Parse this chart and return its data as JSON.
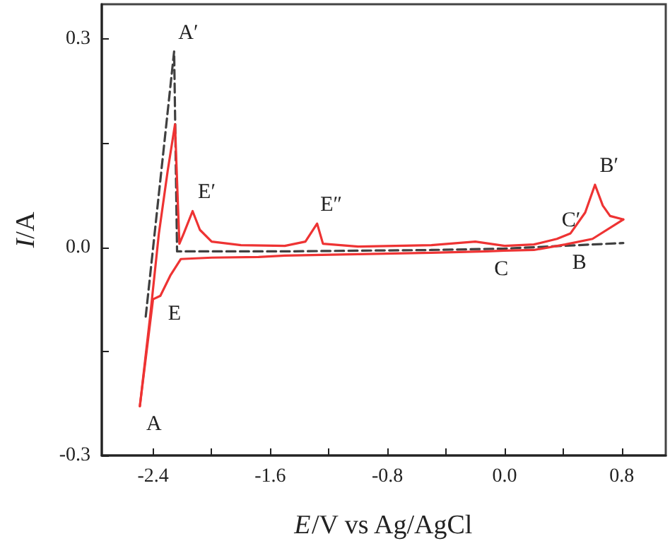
{
  "chart_data": {
    "type": "line",
    "xlabel": "E/V vs Ag/AgCl",
    "ylabel": "I/A",
    "xlim": [
      -2.75,
      1.1
    ],
    "ylim": [
      -0.3,
      0.35
    ],
    "xticks": [
      {
        "value": -2.4,
        "label": "-2.4"
      },
      {
        "value": -2.0,
        "label": null
      },
      {
        "value": -1.6,
        "label": "-1.6"
      },
      {
        "value": -1.2,
        "label": null
      },
      {
        "value": -0.8,
        "label": "-0.8"
      },
      {
        "value": -0.4,
        "label": null
      },
      {
        "value": 0,
        "label": "0.0"
      },
      {
        "value": 0.4,
        "label": null
      },
      {
        "value": 0.8,
        "label": "0.8"
      }
    ],
    "yticks": [
      {
        "value": -0.3,
        "label": "-0.3"
      },
      {
        "value": -0.15,
        "label": null
      },
      {
        "value": 0,
        "label": "0.0"
      },
      {
        "value": 0.15,
        "label": null
      },
      {
        "value": 0.3,
        "label": "0.3"
      }
    ],
    "grid": false,
    "marker": "none",
    "series": [
      {
        "color": "#404040",
        "line_style": "dashed",
        "x": [
          -2.45,
          -2.256,
          -2.236,
          -1.5,
          -0.5,
          0.0,
          0.4,
          0.81
        ],
        "values": [
          -0.1,
          0.282,
          -0.006,
          -0.006,
          -0.004,
          -0.002,
          0.002,
          0.006
        ]
      },
      {
        "color": "#ee3333",
        "line_style": "solid",
        "x": [
          -2.49,
          -2.42,
          -2.36,
          -2.3,
          -2.25,
          -2.23,
          -2.22,
          -2.19,
          -2.13,
          -2.08,
          -2.0,
          -1.8,
          -1.5,
          -1.36,
          -1.28,
          -1.24,
          -1.0,
          -0.5,
          -0.2,
          0.0,
          0.2,
          0.357,
          0.45,
          0.55,
          0.617,
          0.67,
          0.72,
          0.81
        ],
        "values": [
          -0.229,
          -0.1,
          0.02,
          0.11,
          0.177,
          0.06,
          0.005,
          0.02,
          0.052,
          0.025,
          0.008,
          0.003,
          0.002,
          0.008,
          0.034,
          0.005,
          0.001,
          0.003,
          0.008,
          0.002,
          0.004,
          0.012,
          0.02,
          0.05,
          0.09,
          0.06,
          0.045,
          0.04
        ]
      },
      {
        "color": "#ee3333",
        "line_style": "solid",
        "x": [
          0.81,
          0.6,
          0.414,
          0.2,
          0.0,
          -0.12,
          -0.5,
          -1.0,
          -1.5,
          -1.68,
          -2.0,
          -2.21,
          -2.28,
          -2.35,
          -2.4,
          -2.49
        ],
        "values": [
          0.04,
          0.012,
          0.004,
          -0.004,
          -0.005,
          -0.006,
          -0.008,
          -0.01,
          -0.012,
          -0.014,
          -0.015,
          -0.017,
          -0.04,
          -0.07,
          -0.075,
          -0.229
        ]
      }
    ],
    "annotations": [
      {
        "text": "A",
        "x": -2.49,
        "y": -0.229
      },
      {
        "text": "A′",
        "x": -2.256,
        "y": 0.282
      },
      {
        "text": "E",
        "x": -2.35,
        "y": -0.07
      },
      {
        "text": "E′",
        "x": -2.13,
        "y": 0.052
      },
      {
        "text": "E″",
        "x": -1.28,
        "y": 0.034
      },
      {
        "text": "C",
        "x": -0.12,
        "y": -0.006
      },
      {
        "text": "C′",
        "x": 0.357,
        "y": 0.012
      },
      {
        "text": "B",
        "x": 0.414,
        "y": 0.004
      },
      {
        "text": "B′",
        "x": 0.617,
        "y": 0.09
      }
    ]
  }
}
